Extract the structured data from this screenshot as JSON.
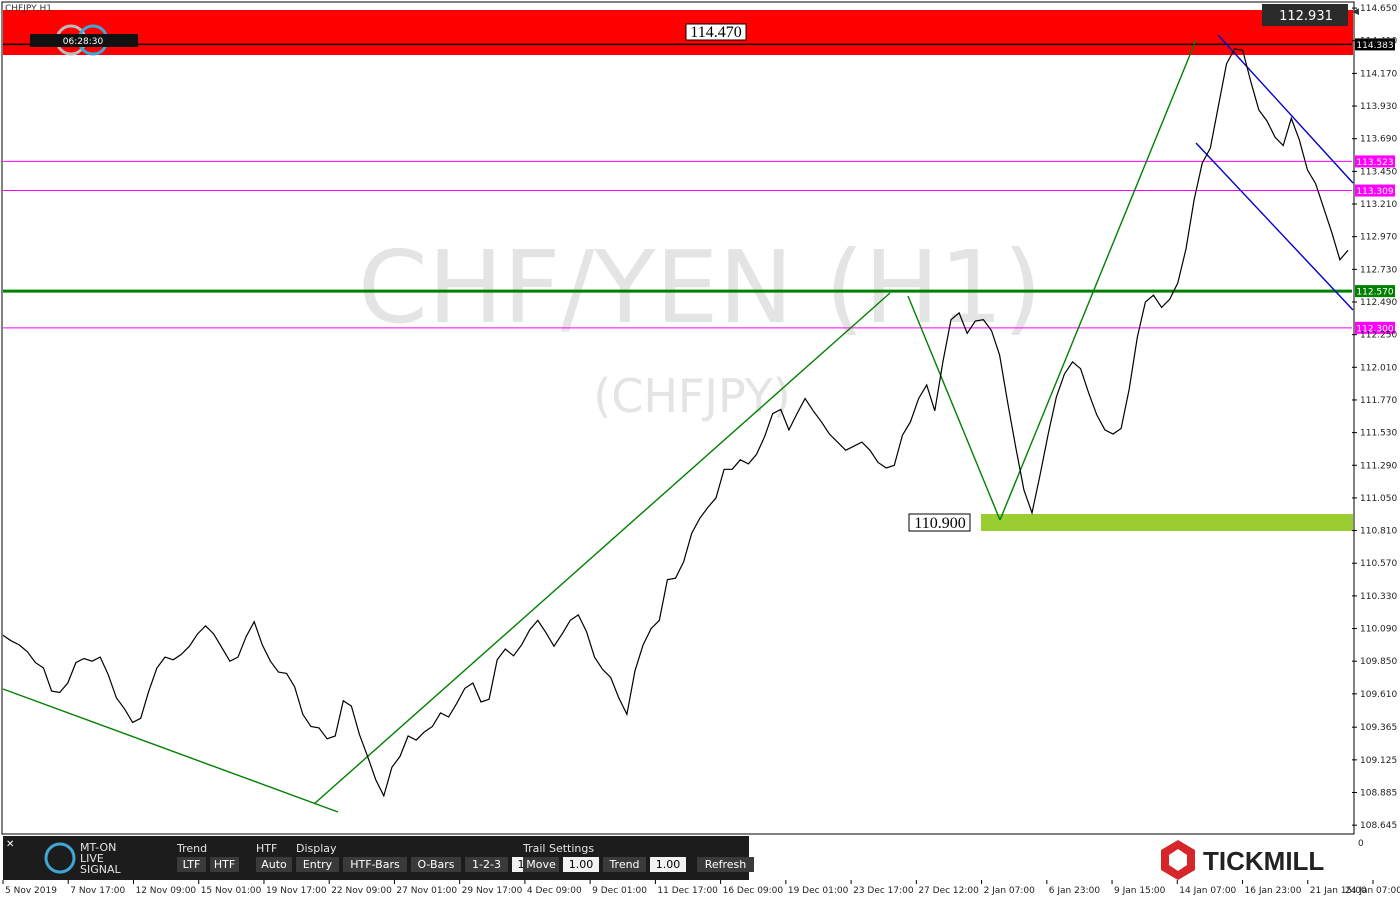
{
  "symbol_title": "CHFJPY,H1",
  "clock": "06:28:30",
  "current_price": "112.931",
  "watermark": {
    "main": "CHF/YEN (H1)",
    "sub": "(CHFJPY)"
  },
  "brand": "TICKMILL",
  "panel": {
    "logo_text": [
      "MT-ON",
      "LIVE",
      "SIGNAL"
    ],
    "groups": [
      {
        "title": "Trend",
        "controls": [
          {
            "label": "LTF",
            "kind": "button"
          },
          {
            "label": "HTF",
            "kind": "button"
          }
        ]
      },
      {
        "title": "HTF",
        "controls": [
          {
            "label": "Auto",
            "kind": "button"
          }
        ]
      },
      {
        "title": "Display",
        "controls": [
          {
            "label": "Entry",
            "kind": "button"
          },
          {
            "label": "HTF-Bars",
            "kind": "button"
          },
          {
            "label": "O-Bars",
            "kind": "button"
          },
          {
            "label": "1-2-3",
            "kind": "button"
          },
          {
            "label": "1",
            "kind": "value"
          }
        ]
      },
      {
        "title": "Trail Settings",
        "controls": [
          {
            "label": "Move",
            "kind": "button"
          },
          {
            "label": "1.00",
            "kind": "value"
          },
          {
            "label": "Trend",
            "kind": "button"
          },
          {
            "label": "1.00",
            "kind": "value"
          }
        ]
      },
      {
        "title": "",
        "controls": [
          {
            "label": "Refresh",
            "kind": "button"
          }
        ]
      }
    ]
  },
  "colors": {
    "price": "#000000",
    "resistance_zone": "#ff0000",
    "support_zone": "#9acd32",
    "magenta": "#ff00ff",
    "green": "#008000",
    "channel": "#0000cd",
    "panel_bg": "#1c1c1c"
  },
  "chart_data": {
    "type": "line",
    "series": [
      {
        "values": [
          110.04,
          110.0,
          109.97,
          109.92,
          109.84,
          109.8,
          109.63,
          109.62,
          109.69,
          109.84,
          109.87,
          109.85,
          109.88,
          109.75,
          109.58,
          109.5,
          109.4,
          109.43,
          109.63,
          109.8,
          109.88,
          109.86,
          109.9,
          109.96,
          110.05,
          110.11,
          110.05,
          109.95,
          109.85,
          109.88,
          110.03,
          110.14,
          109.97,
          109.85,
          109.77,
          109.76,
          109.66,
          109.46,
          109.37,
          109.36,
          109.28,
          109.3,
          109.56,
          109.52,
          109.31,
          109.15,
          108.98,
          108.86,
          109.07,
          109.15,
          109.3,
          109.27,
          109.33,
          109.37,
          109.47,
          109.44,
          109.54,
          109.65,
          109.69,
          109.55,
          109.57,
          109.86,
          109.94,
          109.89,
          109.97,
          110.08,
          110.15,
          110.06,
          109.96,
          110.05,
          110.15,
          110.19,
          110.07,
          109.88,
          109.79,
          109.73,
          109.58,
          109.46,
          109.78,
          109.97,
          110.09,
          110.15,
          110.45,
          110.46,
          110.58,
          110.79,
          110.9,
          110.98,
          111.05,
          111.26,
          111.26,
          111.33,
          111.3,
          111.37,
          111.5,
          111.67,
          111.7,
          111.55,
          111.67,
          111.78,
          111.69,
          111.61,
          111.52,
          111.46,
          111.4,
          111.43,
          111.46,
          111.4,
          111.31,
          111.27,
          111.29,
          111.51,
          111.61,
          111.78,
          111.88,
          111.69,
          112.05,
          112.36,
          112.41,
          112.26,
          112.35,
          112.36,
          112.28,
          112.1,
          111.75,
          111.42,
          111.11,
          110.94,
          111.22,
          111.52,
          111.79,
          111.96,
          112.05,
          112.0,
          111.82,
          111.66,
          111.55,
          111.52,
          111.56,
          111.85,
          112.23,
          112.49,
          112.54,
          112.45,
          112.51,
          112.63,
          112.88,
          113.24,
          113.51,
          113.62,
          113.93,
          114.24,
          114.35,
          114.34,
          114.11,
          113.9,
          113.82,
          113.7,
          113.64,
          113.84,
          113.68,
          113.46,
          113.36,
          113.18,
          113.0,
          112.8,
          112.87
        ]
      }
    ],
    "x_ticks": [
      "5 Nov 2019",
      "7 Nov 17:00",
      "12 Nov 09:00",
      "15 Nov 01:00",
      "19 Nov 17:00",
      "22 Nov 09:00",
      "27 Nov 01:00",
      "29 Nov 17:00",
      "4 Dec 09:00",
      "9 Dec 01:00",
      "11 Dec 17:00",
      "16 Dec 09:00",
      "19 Dec 01:00",
      "23 Dec 17:00",
      "27 Dec 12:00",
      "2 Jan 07:00",
      "6 Jan 23:00",
      "9 Jan 15:00",
      "14 Jan 07:00",
      "16 Jan 23:00",
      "21 Jan 15:00",
      "24 Jan 07:00"
    ],
    "y_ticks": [
      "114.650",
      "114.410",
      "114.170",
      "113.930",
      "113.690",
      "113.450",
      "113.210",
      "112.970",
      "112.730",
      "112.490",
      "112.250",
      "112.010",
      "111.770",
      "111.530",
      "111.290",
      "111.050",
      "110.810",
      "110.570",
      "110.330",
      "110.090",
      "109.850",
      "109.610",
      "109.365",
      "109.125",
      "108.885",
      "108.645"
    ],
    "ylim": [
      108.58,
      114.68
    ],
    "levels": [
      {
        "price": 114.383,
        "label": "114.383",
        "color": "#000000"
      },
      {
        "price": 113.523,
        "label": "113.523",
        "color": "#ff00ff"
      },
      {
        "price": 113.309,
        "label": "113.309",
        "color": "#ff00ff"
      },
      {
        "price": 112.57,
        "label": "112.570",
        "color": "#008000"
      },
      {
        "price": 112.3,
        "label": "112.300",
        "color": "#ff00ff"
      }
    ],
    "annotations": [
      {
        "text": "114.470",
        "price": 114.47
      },
      {
        "text": "110.900",
        "price": 110.9
      }
    ],
    "grid": false
  }
}
